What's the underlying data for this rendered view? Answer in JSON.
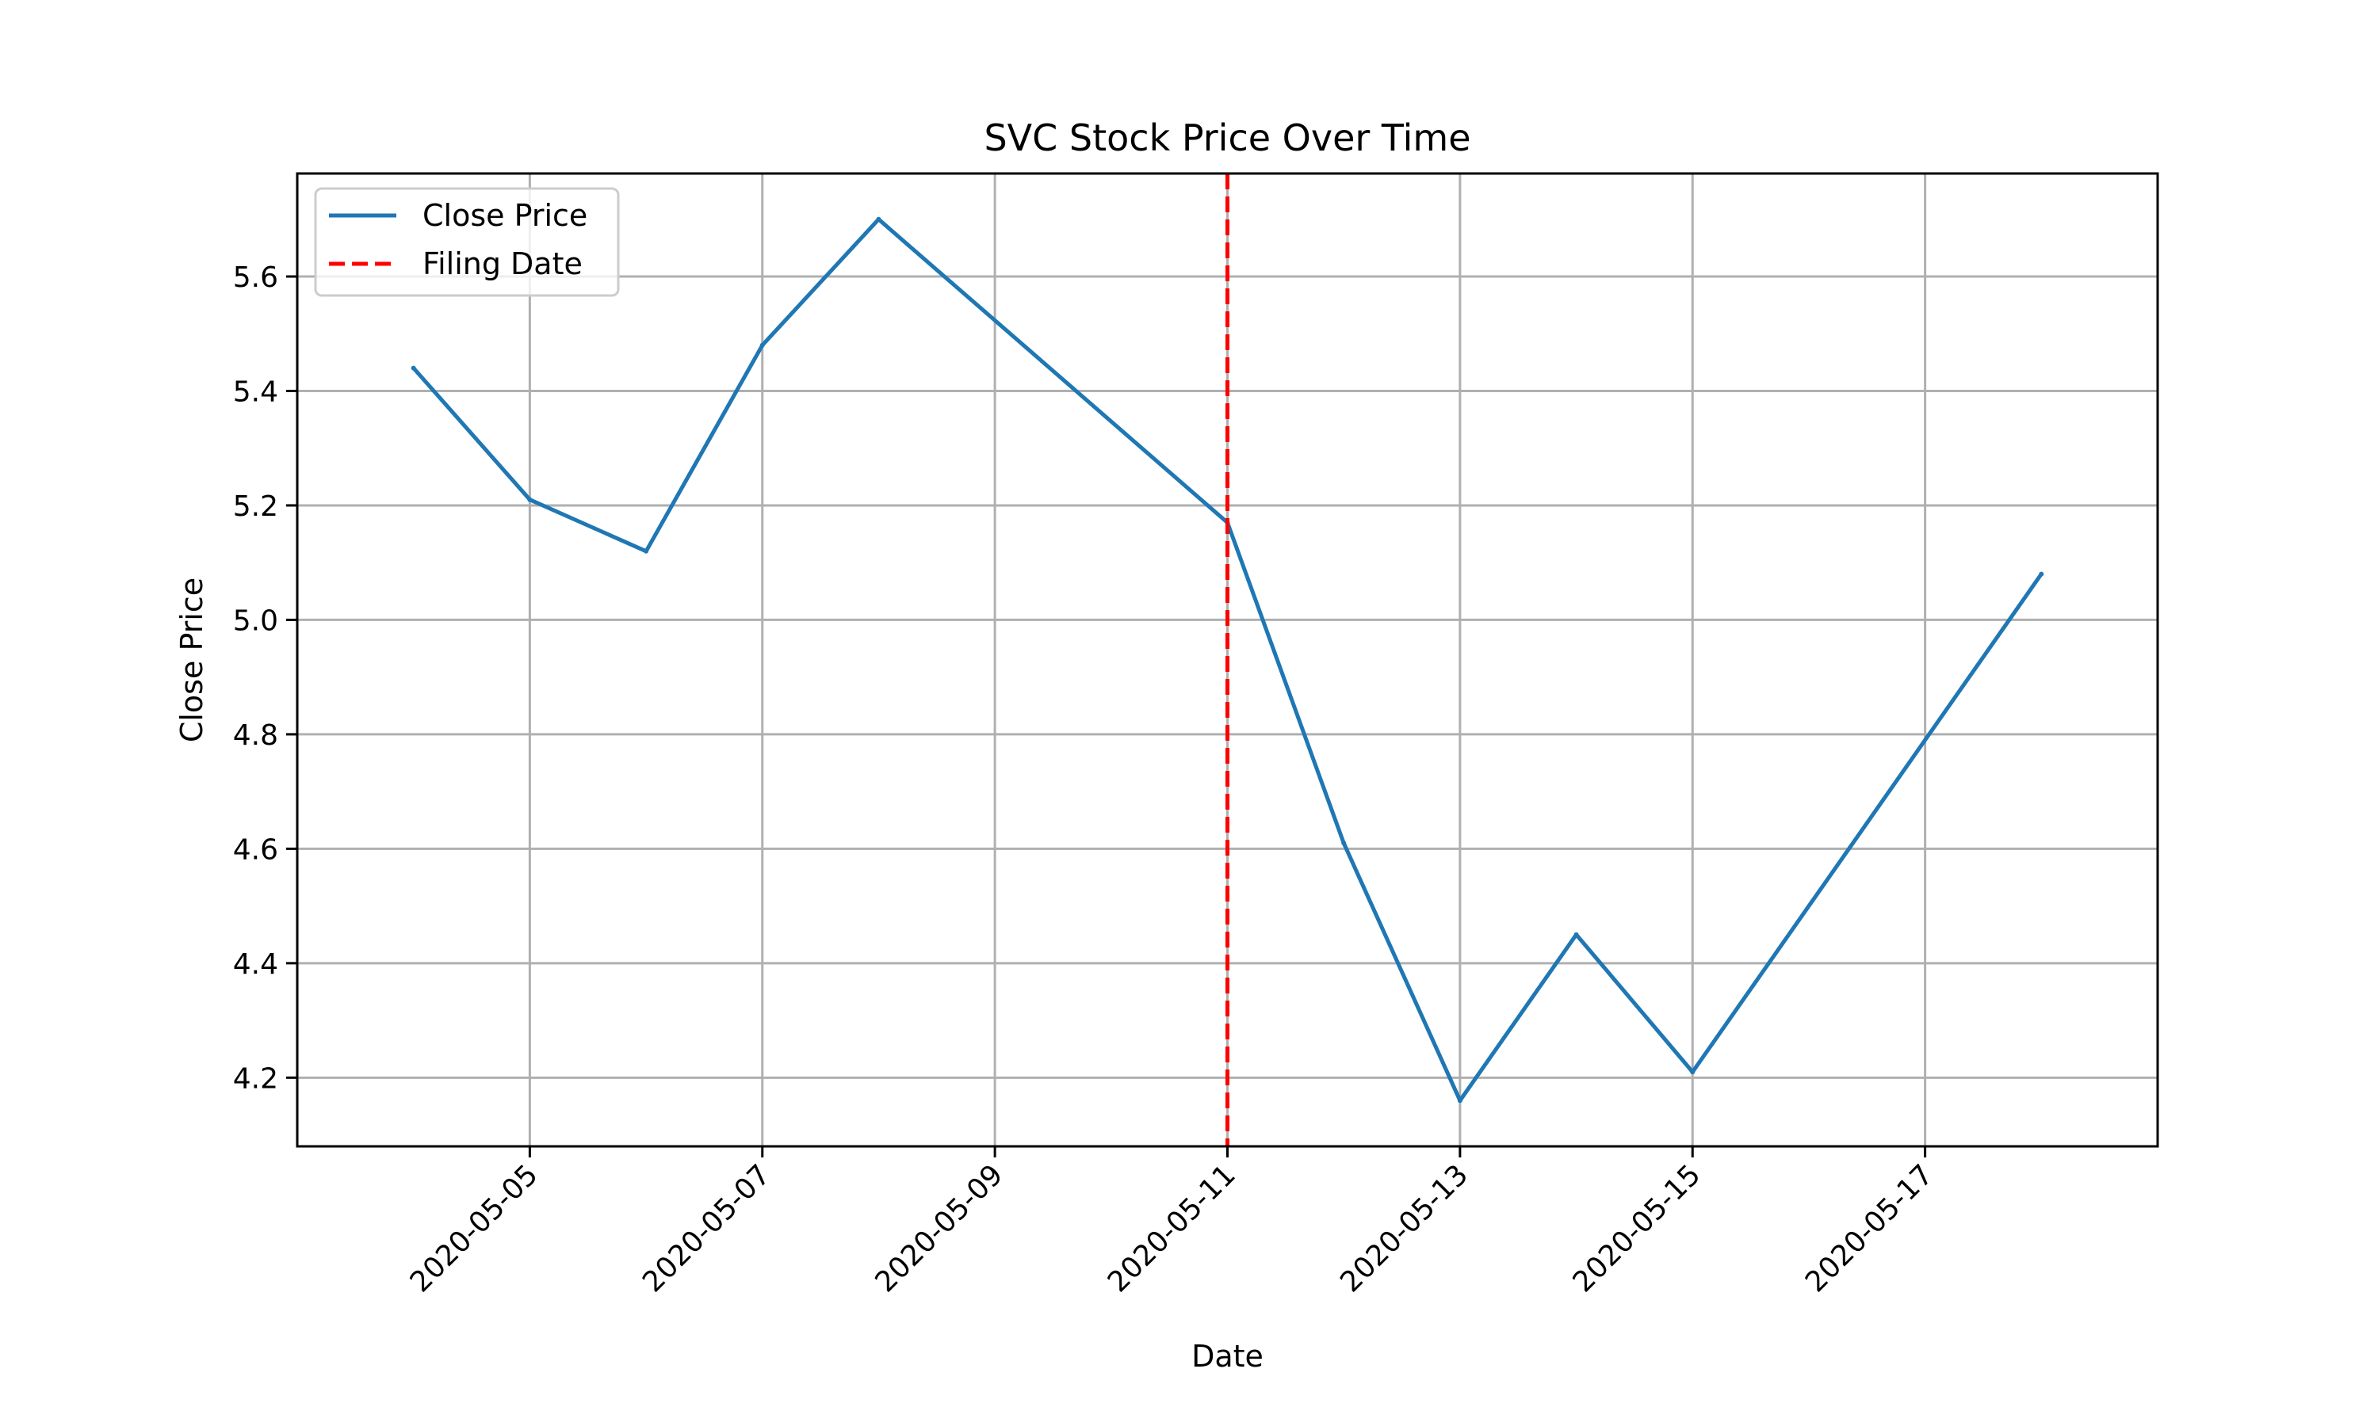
{
  "chart_data": {
    "type": "line",
    "title": "SVC Stock Price Over Time",
    "xlabel": "Date",
    "ylabel": "Close Price",
    "x": [
      "2020-05-04",
      "2020-05-05",
      "2020-05-06",
      "2020-05-07",
      "2020-05-08",
      "2020-05-11",
      "2020-05-12",
      "2020-05-13",
      "2020-05-14",
      "2020-05-15",
      "2020-05-18"
    ],
    "series": [
      {
        "name": "Close Price",
        "color": "#1f77b4",
        "values": [
          5.44,
          5.21,
          5.12,
          5.48,
          5.7,
          5.17,
          4.61,
          4.16,
          4.45,
          4.21,
          5.08
        ]
      }
    ],
    "vline": {
      "name": "Filing Date",
      "x": "2020-05-11",
      "color": "#ff0000",
      "style": "dashed"
    },
    "xlim": [
      "2020-05-03",
      "2020-05-19"
    ],
    "ylim": [
      4.08,
      5.78
    ],
    "xticks": [
      "2020-05-05",
      "2020-05-07",
      "2020-05-09",
      "2020-05-11",
      "2020-05-13",
      "2020-05-15",
      "2020-05-17"
    ],
    "yticks": [
      "4.2",
      "4.4",
      "4.6",
      "4.8",
      "5.0",
      "5.2",
      "5.4",
      "5.6"
    ],
    "grid": true,
    "legend_position": "top-left"
  }
}
